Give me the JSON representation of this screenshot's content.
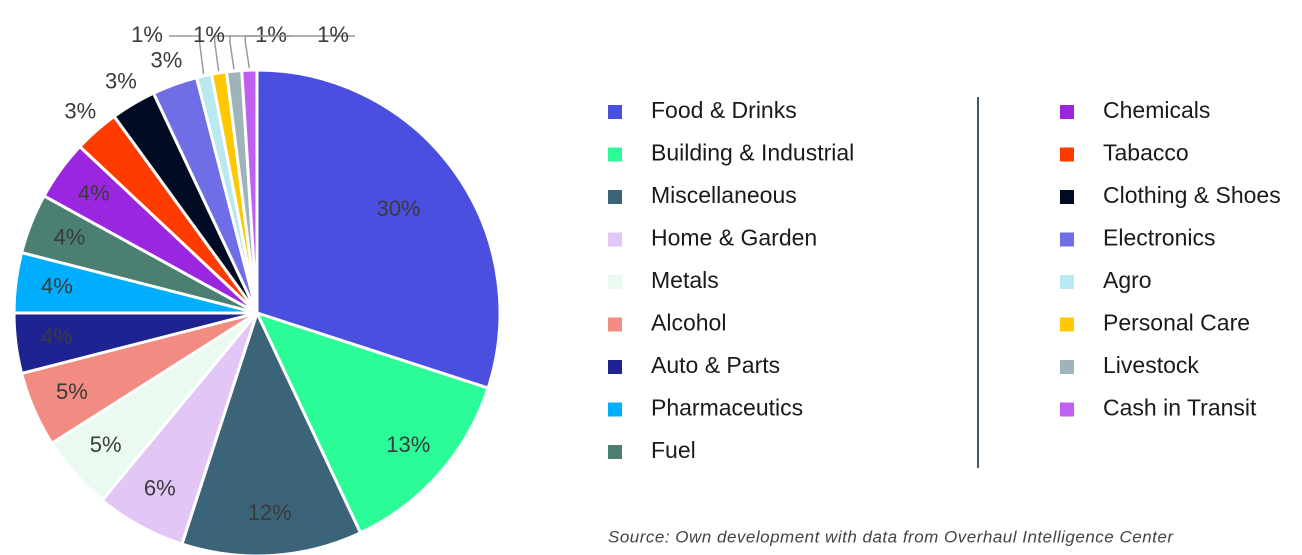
{
  "chart_data": {
    "type": "pie",
    "categories": [
      "Food & Drinks",
      "Building & Industrial",
      "Miscellaneous",
      "Home & Garden",
      "Metals",
      "Alcohol",
      "Auto & Parts",
      "Pharmaceutics",
      "Fuel",
      "Chemicals",
      "Tabacco",
      "Clothing & Shoes",
      "Electronics",
      "Agro",
      "Personal Care",
      "Livestock",
      "Cash in Transit"
    ],
    "values": [
      30,
      13,
      12,
      6,
      5,
      5,
      4,
      4,
      4,
      4,
      3,
      3,
      3,
      1,
      1,
      1,
      1
    ],
    "value_labels": [
      "30%",
      "13%",
      "12%",
      "6%",
      "5%",
      "5%",
      "4%",
      "4%",
      "4%",
      "4%",
      "3%",
      "3%",
      "3%",
      "1%",
      "1%",
      "1%",
      "1%"
    ],
    "colors": [
      "#4a4fe0",
      "#2bfc98",
      "#3c6478",
      "#e2c6f6",
      "#eafaf1",
      "#f28b82",
      "#1e2391",
      "#00aeff",
      "#4a7f72",
      "#9b26e0",
      "#ff3b00",
      "#020b24",
      "#6f6ee6",
      "#b8e8f0",
      "#ffc800",
      "#9fb3bb",
      "#c060f0"
    ],
    "source": "Source: Own development with data from Overhaul Intelligence Center"
  }
}
